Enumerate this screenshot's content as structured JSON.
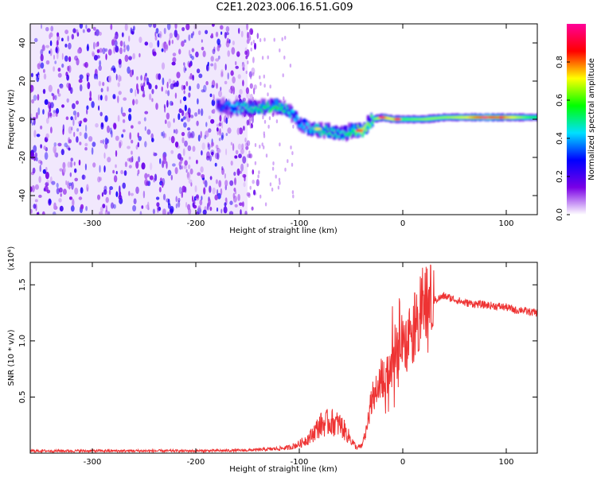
{
  "title": "C2E1.2023.006.16.51.G09",
  "chart_data": [
    {
      "type": "heatmap",
      "xlabel": "Height of straight line (km)",
      "ylabel": "Frequency (Hz)",
      "xlim": [
        -360,
        130
      ],
      "ylim": [
        -50,
        50
      ],
      "xticks": [
        -300,
        -200,
        -100,
        0,
        100
      ],
      "xtick_labels": [
        "-300",
        "-200",
        "-100",
        "0",
        "100"
      ],
      "yticks": [
        -40,
        -20,
        0,
        20,
        40
      ],
      "ytick_labels": [
        "-40",
        "-20",
        "0",
        "20",
        "40"
      ],
      "colorbar": {
        "label": "Normalized spectral amplitude",
        "range": [
          0,
          1
        ],
        "ticks": [
          0.0,
          0.2,
          0.4,
          0.6,
          0.8
        ],
        "tick_labels": [
          "0.0",
          "0.2",
          "0.4",
          "0.6",
          "0.8"
        ],
        "colormap": [
          "#ffffff",
          "#7a00e6",
          "#0000ff",
          "#00e0ff",
          "#00ff00",
          "#ffff00",
          "#ff0000",
          "#ff0099"
        ]
      },
      "noise_region": {
        "x_range": [
          -360,
          -150
        ],
        "freq_range": [
          -50,
          50
        ],
        "amplitude": 0.15
      },
      "ridge": [
        {
          "x": -180,
          "freq": 7,
          "amp": 0.3
        },
        {
          "x": -160,
          "freq": 6,
          "amp": 0.45
        },
        {
          "x": -140,
          "freq": 6,
          "amp": 0.5
        },
        {
          "x": -120,
          "freq": 7,
          "amp": 0.55
        },
        {
          "x": -110,
          "freq": 4,
          "amp": 0.45
        },
        {
          "x": -100,
          "freq": -2,
          "amp": 0.4
        },
        {
          "x": -90,
          "freq": -5,
          "amp": 0.45
        },
        {
          "x": -75,
          "freq": -6,
          "amp": 0.5
        },
        {
          "x": -60,
          "freq": -8,
          "amp": 0.45
        },
        {
          "x": -50,
          "freq": -6,
          "amp": 0.55
        },
        {
          "x": -40,
          "freq": -6,
          "amp": 0.7
        },
        {
          "x": -30,
          "freq": 0,
          "amp": 0.6
        },
        {
          "x": -20,
          "freq": 1,
          "amp": 0.75
        },
        {
          "x": -10,
          "freq": 0,
          "amp": 0.7
        },
        {
          "x": 0,
          "freq": 0,
          "amp": 0.6
        },
        {
          "x": 20,
          "freq": 0,
          "amp": 0.65
        },
        {
          "x": 40,
          "freq": 1,
          "amp": 0.65
        },
        {
          "x": 60,
          "freq": 1,
          "amp": 0.7
        },
        {
          "x": 80,
          "freq": 1,
          "amp": 0.9
        },
        {
          "x": 100,
          "freq": 1,
          "amp": 0.75
        },
        {
          "x": 120,
          "freq": 1,
          "amp": 0.6
        },
        {
          "x": 130,
          "freq": 1,
          "amp": 0.55
        }
      ]
    },
    {
      "type": "line",
      "xlabel": "Height of straight line (km)",
      "ylabel": "SNR (10 * v/v)",
      "y_multiplier": "(x10⁴)",
      "xlim": [
        -360,
        130
      ],
      "ylim": [
        0,
        1.7
      ],
      "xticks": [
        -300,
        -200,
        -100,
        0,
        100
      ],
      "xtick_labels": [
        "-300",
        "-200",
        "-100",
        "0",
        "100"
      ],
      "yticks": [
        0.5,
        1.0,
        1.5
      ],
      "ytick_labels": [
        "0.5",
        "1.0",
        "1.5"
      ],
      "series": [
        {
          "color": "#ee3333",
          "x": [
            -360,
            -300,
            -250,
            -200,
            -150,
            -120,
            -110,
            -100,
            -90,
            -80,
            -70,
            -60,
            -50,
            -45,
            -40,
            -35,
            -30,
            -25,
            -20,
            -15,
            -10,
            -5,
            0,
            5,
            10,
            15,
            20,
            25,
            30,
            40,
            50,
            60,
            70,
            80,
            90,
            100,
            110,
            115,
            120,
            130
          ],
          "y": [
            0.02,
            0.02,
            0.02,
            0.02,
            0.025,
            0.04,
            0.05,
            0.08,
            0.14,
            0.25,
            0.28,
            0.25,
            0.12,
            0.05,
            0.06,
            0.2,
            0.5,
            0.58,
            0.65,
            0.72,
            0.82,
            0.9,
            0.95,
            1.0,
            1.12,
            1.25,
            1.3,
            1.32,
            1.36,
            1.4,
            1.37,
            1.34,
            1.33,
            1.32,
            1.31,
            1.3,
            1.27,
            1.28,
            1.26,
            1.25
          ]
        }
      ]
    }
  ]
}
